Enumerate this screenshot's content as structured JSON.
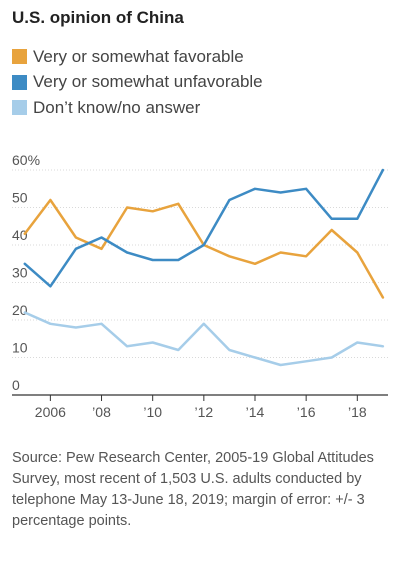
{
  "title": "U.S. opinion of China",
  "source": "Source: Pew Research Center, 2005-19 Global Attitudes Survey, most recent of 1,503 U.S. adults conducted by telephone May 13-June 18, 2019; margin of error: +/- 3 percentage points.",
  "chart_data": {
    "type": "line",
    "title": "U.S. opinion of China",
    "xlabel": "",
    "ylabel": "",
    "x": [
      2005,
      2006,
      2007,
      2008,
      2009,
      2010,
      2011,
      2012,
      2013,
      2014,
      2015,
      2016,
      2017,
      2018,
      2019
    ],
    "xlim": [
      2004.5,
      2019.2
    ],
    "ylim": [
      0,
      60
    ],
    "y_ticks": [
      0,
      10,
      20,
      30,
      40,
      50,
      60
    ],
    "y_tick_labels": [
      "0",
      "10",
      "20",
      "30",
      "40",
      "50",
      "60%"
    ],
    "x_ticks": [
      2006,
      2008,
      2010,
      2012,
      2014,
      2016,
      2018
    ],
    "x_tick_labels": [
      "2006",
      "’08",
      "’10",
      "’12",
      "’14",
      "’16",
      "’18"
    ],
    "grid": "horizontal",
    "legend": "top",
    "series": [
      {
        "name": "Very or somewhat favorable",
        "color": "#e8a33d",
        "values": [
          43,
          52,
          42,
          39,
          50,
          49,
          51,
          40,
          37,
          35,
          38,
          37,
          44,
          38,
          26
        ]
      },
      {
        "name": "Very or somewhat unfavorable",
        "color": "#3d8bc4",
        "values": [
          35,
          29,
          39,
          42,
          38,
          36,
          36,
          40,
          52,
          55,
          54,
          55,
          47,
          47,
          60
        ]
      },
      {
        "name": "Don’t know/no answer",
        "color": "#a6cde9",
        "values": [
          22,
          19,
          18,
          19,
          13,
          14,
          12,
          19,
          12,
          10,
          8,
          9,
          10,
          14,
          13
        ]
      }
    ]
  }
}
